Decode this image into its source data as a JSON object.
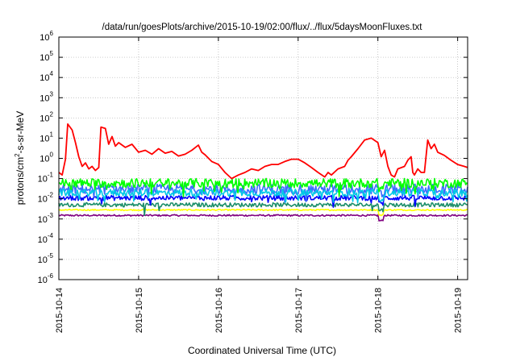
{
  "chart_data": {
    "type": "line",
    "title": "/data/run/goesPlots/archive/2015-10-19/02:00/flux/../flux/5daysMoonFluxes.txt",
    "xlabel": "Coordinated Universal Time (UTC)",
    "ylabel": {
      "base": "protons/cm",
      "exp": "2",
      "rest": "-s-sr-MeV"
    },
    "y_scale": "log",
    "ylim": [
      1e-06,
      1000000.0
    ],
    "y_ticks": [
      {
        "value": 1000000.0,
        "base": "10",
        "exp": "6"
      },
      {
        "value": 100000.0,
        "base": "10",
        "exp": "5"
      },
      {
        "value": 10000.0,
        "base": "10",
        "exp": "4"
      },
      {
        "value": 1000.0,
        "base": "10",
        "exp": "3"
      },
      {
        "value": 100.0,
        "base": "10",
        "exp": "2"
      },
      {
        "value": 10.0,
        "base": "10",
        "exp": "1"
      },
      {
        "value": 1.0,
        "base": "10",
        "exp": "0"
      },
      {
        "value": 0.1,
        "base": "10",
        "exp": "-1"
      },
      {
        "value": 0.01,
        "base": "10",
        "exp": "-2"
      },
      {
        "value": 0.001,
        "base": "10",
        "exp": "-3"
      },
      {
        "value": 0.0001,
        "base": "10",
        "exp": "-4"
      },
      {
        "value": 1e-05,
        "base": "10",
        "exp": "-5"
      },
      {
        "value": 1e-06,
        "base": "10",
        "exp": "-6"
      }
    ],
    "xlim": [
      "2015-10-14",
      "2015-10-19 03:00"
    ],
    "x_ticks": [
      "2015-10-14",
      "2015-10-15",
      "2015-10-16",
      "2015-10-17",
      "2015-10-18",
      "2015-10-19"
    ],
    "grid": true,
    "legend": "none",
    "series": [
      {
        "color": "#ff0000",
        "points": [
          [
            "2015-10-14 00:00",
            0.2
          ],
          [
            "2015-10-14 01:00",
            0.15
          ],
          [
            "2015-10-14 02:00",
            0.9
          ],
          [
            "2015-10-14 02:40",
            50
          ],
          [
            "2015-10-14 04:00",
            25
          ],
          [
            "2015-10-14 05:00",
            6
          ],
          [
            "2015-10-14 06:00",
            1.2
          ],
          [
            "2015-10-14 07:00",
            0.4
          ],
          [
            "2015-10-14 08:00",
            0.6
          ],
          [
            "2015-10-14 09:00",
            0.3
          ],
          [
            "2015-10-14 10:00",
            0.4
          ],
          [
            "2015-10-14 11:00",
            0.25
          ],
          [
            "2015-10-14 12:00",
            0.35
          ],
          [
            "2015-10-14 12:40",
            35
          ],
          [
            "2015-10-14 14:00",
            30
          ],
          [
            "2015-10-14 15:00",
            5
          ],
          [
            "2015-10-14 16:00",
            12
          ],
          [
            "2015-10-14 17:00",
            4
          ],
          [
            "2015-10-14 18:00",
            6
          ],
          [
            "2015-10-14 20:00",
            3.5
          ],
          [
            "2015-10-14 22:00",
            5
          ],
          [
            "2015-10-15 00:00",
            2
          ],
          [
            "2015-10-15 02:00",
            2.5
          ],
          [
            "2015-10-15 04:00",
            1.6
          ],
          [
            "2015-10-15 06:00",
            3
          ],
          [
            "2015-10-15 08:00",
            1.8
          ],
          [
            "2015-10-15 10:00",
            2.2
          ],
          [
            "2015-10-15 12:00",
            1.3
          ],
          [
            "2015-10-15 14:00",
            1.6
          ],
          [
            "2015-10-15 16:00",
            2.5
          ],
          [
            "2015-10-15 18:00",
            4.5
          ],
          [
            "2015-10-15 19:00",
            2
          ],
          [
            "2015-10-15 20:00",
            1.5
          ],
          [
            "2015-10-15 22:00",
            0.7
          ],
          [
            "2015-10-16 00:00",
            0.5
          ],
          [
            "2015-10-16 02:00",
            0.2
          ],
          [
            "2015-10-16 04:00",
            0.1
          ],
          [
            "2015-10-16 06:00",
            0.15
          ],
          [
            "2015-10-16 08:00",
            0.2
          ],
          [
            "2015-10-16 10:00",
            0.3
          ],
          [
            "2015-10-16 12:00",
            0.25
          ],
          [
            "2015-10-16 14:00",
            0.4
          ],
          [
            "2015-10-16 16:00",
            0.5
          ],
          [
            "2015-10-16 18:00",
            0.5
          ],
          [
            "2015-10-16 20:00",
            0.7
          ],
          [
            "2015-10-16 22:00",
            0.9
          ],
          [
            "2015-10-17 00:00",
            0.9
          ],
          [
            "2015-10-17 02:00",
            0.6
          ],
          [
            "2015-10-17 04:00",
            0.35
          ],
          [
            "2015-10-17 06:00",
            0.2
          ],
          [
            "2015-10-17 08:00",
            0.12
          ],
          [
            "2015-10-17 09:00",
            0.2
          ],
          [
            "2015-10-17 10:00",
            0.15
          ],
          [
            "2015-10-17 12:00",
            0.3
          ],
          [
            "2015-10-17 14:00",
            0.4
          ],
          [
            "2015-10-17 15:00",
            0.8
          ],
          [
            "2015-10-17 16:00",
            1.2
          ],
          [
            "2015-10-17 18:00",
            3
          ],
          [
            "2015-10-17 20:00",
            8
          ],
          [
            "2015-10-17 22:00",
            10
          ],
          [
            "2015-10-18 00:00",
            6
          ],
          [
            "2015-10-18 01:00",
            1.2
          ],
          [
            "2015-10-18 02:00",
            2.5
          ],
          [
            "2015-10-18 03:00",
            0.4
          ],
          [
            "2015-10-18 04:00",
            0.15
          ],
          [
            "2015-10-18 05:00",
            0.12
          ],
          [
            "2015-10-18 06:00",
            0.3
          ],
          [
            "2015-10-18 08:00",
            0.4
          ],
          [
            "2015-10-18 09:00",
            0.8
          ],
          [
            "2015-10-18 10:00",
            1.2
          ],
          [
            "2015-10-18 10:30",
            0.2
          ],
          [
            "2015-10-18 11:00",
            0.15
          ],
          [
            "2015-10-18 12:00",
            0.3
          ],
          [
            "2015-10-18 13:00",
            0.2
          ],
          [
            "2015-10-18 14:00",
            0.2
          ],
          [
            "2015-10-18 15:00",
            8
          ],
          [
            "2015-10-18 16:00",
            3
          ],
          [
            "2015-10-18 17:00",
            5
          ],
          [
            "2015-10-18 18:00",
            2
          ],
          [
            "2015-10-18 20:00",
            1.4
          ],
          [
            "2015-10-18 22:00",
            0.8
          ],
          [
            "2015-10-19 00:00",
            0.5
          ],
          [
            "2015-10-19 02:00",
            0.4
          ],
          [
            "2015-10-19 03:00",
            0.35
          ]
        ]
      },
      {
        "color": "#00ff00",
        "level": 0.06,
        "jitter": 0.45,
        "dips": 0.35
      },
      {
        "color": "#00c8e6",
        "level": 0.02,
        "jitter": 0.35,
        "dips": 0.3
      },
      {
        "color": "#3a6cff",
        "level": 0.03,
        "jitter": 0.5,
        "dips": 0.25
      },
      {
        "color": "#0000ff",
        "level": 0.011,
        "jitter": 0.25,
        "dips": 0.1
      },
      {
        "color": "#1c8f6a",
        "level": 0.005,
        "jitter": 0.2,
        "dips": 0.05
      },
      {
        "color": "#ffff00",
        "level": 0.0028,
        "jitter": 0.06,
        "dips": 0.0
      },
      {
        "color": "#800080",
        "level": 0.0015,
        "jitter": 0.08,
        "dips": 0.0
      }
    ]
  }
}
